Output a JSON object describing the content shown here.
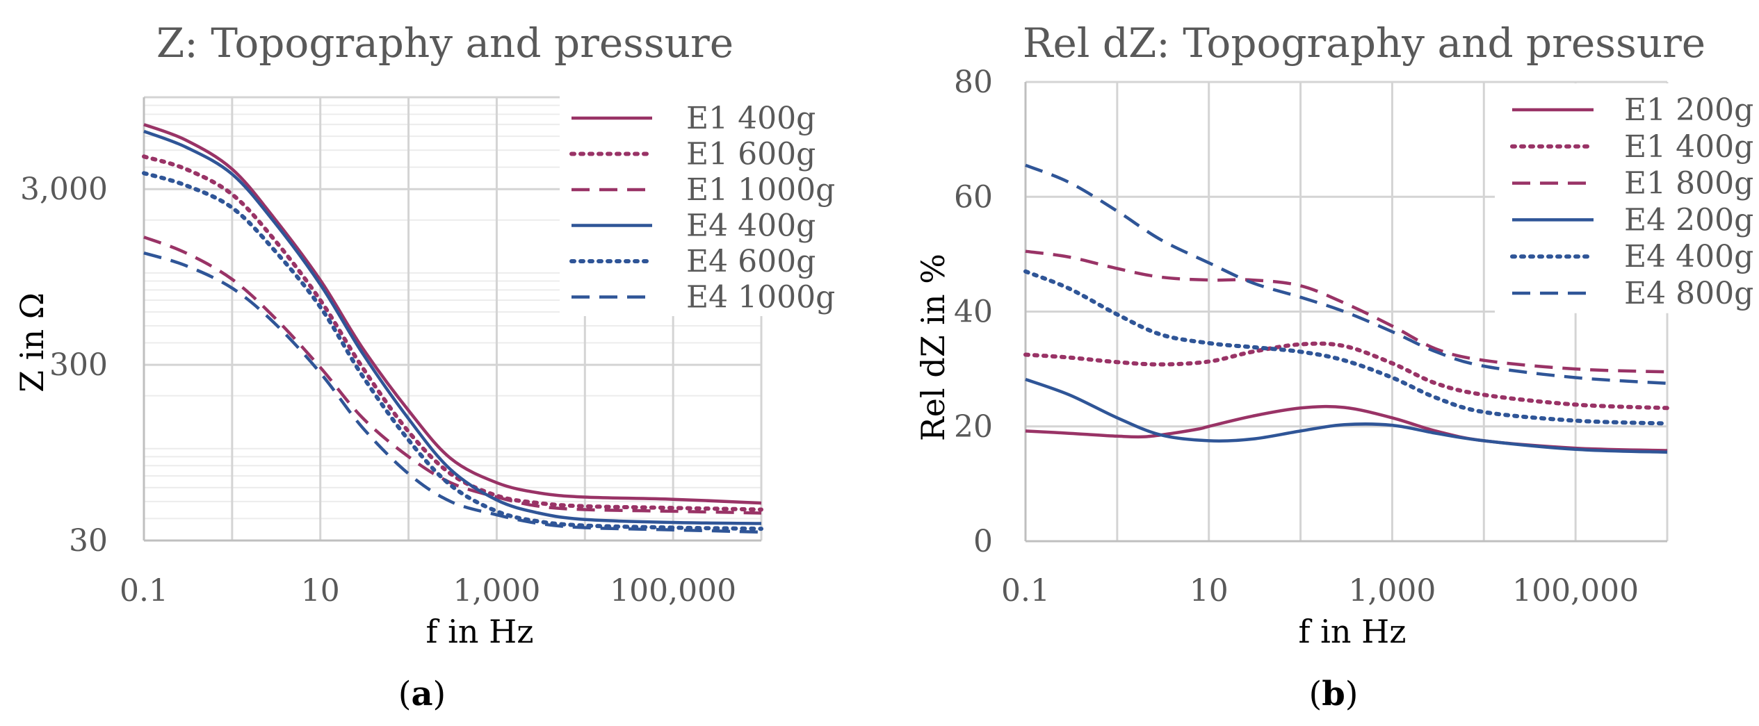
{
  "colors": {
    "E1": "#993366",
    "E4": "#2F5597",
    "grid_major": "#d4d4d4",
    "grid_minor": "#ececec",
    "text": "#595959"
  },
  "chart_data": [
    {
      "type": "line",
      "title": "Z: Topography and pressure",
      "xlabel": "f in Hz",
      "ylabel": "Z in Ω",
      "xscale": "log",
      "yscale": "log",
      "xlim": [
        0.1,
        1000000
      ],
      "ylim": [
        30,
        10000
      ],
      "xticks": [
        0.1,
        10,
        1000,
        100000
      ],
      "xtick_labels": [
        "0.1",
        "10",
        "1,000",
        "100,000"
      ],
      "yticks": [
        30,
        300,
        3000
      ],
      "ytick_labels": [
        "30",
        "300",
        "3,000"
      ],
      "legend": "top-right",
      "panel_label": "a",
      "series": [
        {
          "name": "E1 400g",
          "color": "E1",
          "style": "solid",
          "x": [
            0.1,
            0.3,
            1,
            3,
            10,
            30,
            100,
            300,
            1000,
            3000,
            10000,
            100000,
            1000000
          ],
          "y": [
            7000,
            5700,
            3900,
            2050,
            910,
            375,
            165,
            88,
            64,
            56,
            53,
            51.5,
            49
          ]
        },
        {
          "name": "E1 600g",
          "color": "E1",
          "style": "dotted",
          "x": [
            0.1,
            0.3,
            1,
            3,
            10,
            30,
            100,
            300,
            1000,
            3000,
            10000,
            100000,
            1000000
          ],
          "y": [
            4600,
            3900,
            2800,
            1550,
            700,
            290,
            125,
            72,
            54,
            49,
            47,
            46,
            45
          ]
        },
        {
          "name": "E1 1000g",
          "color": "E1",
          "style": "dashed",
          "x": [
            0.1,
            0.3,
            1,
            3,
            10,
            30,
            100,
            300,
            1000,
            3000,
            10000,
            100000,
            1000000
          ],
          "y": [
            1600,
            1300,
            920,
            560,
            290,
            150,
            90,
            64,
            53,
            47,
            45,
            44,
            43
          ]
        },
        {
          "name": "E4 400g",
          "color": "E4",
          "style": "solid",
          "x": [
            0.1,
            0.3,
            1,
            3,
            10,
            30,
            100,
            300,
            1000,
            3000,
            10000,
            100000,
            1000000
          ],
          "y": [
            6400,
            5200,
            3650,
            1950,
            860,
            350,
            148,
            76,
            51,
            43,
            39.5,
            38,
            37.5
          ]
        },
        {
          "name": "E4 600g",
          "color": "E4",
          "style": "dotted",
          "x": [
            0.1,
            0.3,
            1,
            3,
            10,
            30,
            100,
            300,
            1000,
            3000,
            10000,
            100000,
            1000000
          ],
          "y": [
            3700,
            3150,
            2350,
            1350,
            640,
            260,
            112,
            62,
            44,
            38.5,
            36.5,
            35.5,
            35
          ]
        },
        {
          "name": "E4 1000g",
          "color": "E4",
          "style": "dashed",
          "x": [
            0.1,
            0.3,
            1,
            3,
            10,
            30,
            100,
            300,
            1000,
            3000,
            10000,
            100000,
            1000000
          ],
          "y": [
            1300,
            1100,
            820,
            520,
            270,
            132,
            72,
            50,
            42,
            37.5,
            35.5,
            34.5,
            33.5
          ]
        }
      ]
    },
    {
      "type": "line",
      "title": "Rel dZ: Topography and pressure",
      "xlabel": "f in Hz",
      "ylabel": "Rel dZ in %",
      "xscale": "log",
      "yscale": "linear",
      "xlim": [
        0.1,
        1000000
      ],
      "ylim": [
        0,
        80
      ],
      "xticks": [
        0.1,
        10,
        1000,
        100000
      ],
      "xtick_labels": [
        "0.1",
        "10",
        "1,000",
        "100,000"
      ],
      "yticks": [
        0,
        20,
        40,
        60,
        80
      ],
      "ytick_labels": [
        "0",
        "20",
        "40",
        "60",
        "80"
      ],
      "legend": "top-right",
      "panel_label": "b",
      "series": [
        {
          "name": "E1 200g",
          "color": "E1",
          "style": "solid",
          "x": [
            0.1,
            0.3,
            1,
            2,
            4,
            8,
            10,
            30,
            100,
            300,
            1000,
            3000,
            10000,
            100000,
            1000000
          ],
          "y": [
            19.2,
            18.8,
            18.3,
            18.2,
            18.8,
            19.6,
            20,
            21.8,
            23.2,
            23.3,
            21.5,
            19.2,
            17.5,
            16.2,
            15.8
          ]
        },
        {
          "name": "E1 400g",
          "color": "E1",
          "style": "dotted",
          "x": [
            0.1,
            0.3,
            1,
            3,
            10,
            30,
            100,
            300,
            1000,
            3000,
            10000,
            100000,
            1000000
          ],
          "y": [
            32.5,
            32,
            31.2,
            30.8,
            31.3,
            33,
            34.3,
            34,
            31,
            27.5,
            25.5,
            23.8,
            23.2
          ]
        },
        {
          "name": "E1 800g",
          "color": "E1",
          "style": "dashed",
          "x": [
            0.1,
            0.3,
            1,
            3,
            10,
            30,
            100,
            300,
            1000,
            3000,
            10000,
            100000,
            1000000
          ],
          "y": [
            50.5,
            49.5,
            47.5,
            46,
            45.5,
            45.5,
            44.5,
            41.5,
            37.5,
            33.5,
            31.5,
            30,
            29.5
          ]
        },
        {
          "name": "E4 200g",
          "color": "E4",
          "style": "solid",
          "x": [
            0.1,
            0.3,
            1,
            3,
            10,
            30,
            100,
            300,
            1000,
            3000,
            10000,
            100000,
            1000000
          ],
          "y": [
            28.2,
            25.5,
            21.5,
            18.5,
            17.5,
            17.8,
            19.2,
            20.3,
            20.2,
            18.8,
            17.5,
            16,
            15.5
          ]
        },
        {
          "name": "E4 400g",
          "color": "E4",
          "style": "dotted",
          "x": [
            0.1,
            0.3,
            1,
            3,
            10,
            30,
            100,
            300,
            1000,
            3000,
            10000,
            100000,
            1000000
          ],
          "y": [
            47,
            44,
            39.5,
            36,
            34.5,
            33.8,
            33,
            31.5,
            28.5,
            25,
            22.5,
            21,
            20.5
          ]
        },
        {
          "name": "E4 800g",
          "color": "E4",
          "style": "dashed",
          "x": [
            0.1,
            0.3,
            1,
            3,
            10,
            30,
            100,
            300,
            1000,
            3000,
            10000,
            100000,
            1000000
          ],
          "y": [
            65.5,
            62.5,
            57.5,
            52.5,
            48.5,
            45,
            42.5,
            40,
            36.5,
            33,
            30.5,
            28.5,
            27.5
          ]
        }
      ]
    }
  ]
}
